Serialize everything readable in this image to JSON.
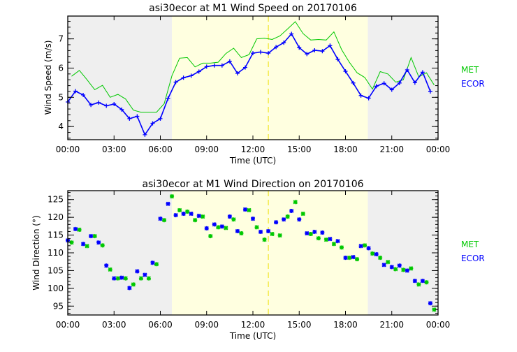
{
  "colors": {
    "met": "#00c800",
    "ecor": "#0000ff",
    "night": "#efefef",
    "day": "#ffffe0",
    "noon": "#f0e000"
  },
  "chart_data": [
    {
      "type": "line",
      "title": "asi30ecor at M1 Wind Speed on 20170106",
      "xlabel": "Time (UTC)",
      "ylabel": "Wind Speed (m/s)",
      "xlim": [
        0,
        24
      ],
      "ylim": [
        3.55,
        7.78
      ],
      "xticks": [
        0,
        3,
        6,
        9,
        12,
        15,
        18,
        21,
        24
      ],
      "xtick_labels": [
        "00:00",
        "03:00",
        "06:00",
        "09:00",
        "12:00",
        "15:00",
        "18:00",
        "21:00",
        "00:00"
      ],
      "yticks": [
        4,
        5,
        6,
        7
      ],
      "ytick_labels": [
        "4",
        "5",
        "6",
        "7"
      ],
      "shading": {
        "night_end": 6.75,
        "night_start": 19.45,
        "noon": 13.0
      },
      "legend": [
        "MET",
        "ECOR"
      ],
      "legend_placement": "right",
      "series": [
        {
          "name": "MET",
          "markers": false,
          "x": [
            0.25,
            0.75,
            1.25,
            1.75,
            2.25,
            2.75,
            3.25,
            3.75,
            4.25,
            4.75,
            5.25,
            5.75,
            6.25,
            6.75,
            7.25,
            7.75,
            8.25,
            8.75,
            9.25,
            9.75,
            10.25,
            10.75,
            11.25,
            11.75,
            12.25,
            12.75,
            13.25,
            13.75,
            14.25,
            14.75,
            15.25,
            15.75,
            16.25,
            16.75,
            17.25,
            17.75,
            18.25,
            18.75,
            19.25,
            19.75,
            20.25,
            20.75,
            21.25,
            21.75,
            22.25,
            22.75,
            23.25,
            23.75
          ],
          "y": [
            5.72,
            5.92,
            5.6,
            5.26,
            5.41,
            5.0,
            5.1,
            4.94,
            4.56,
            4.49,
            4.49,
            4.49,
            4.78,
            5.74,
            6.34,
            6.36,
            6.04,
            6.17,
            6.17,
            6.2,
            6.5,
            6.68,
            6.36,
            6.46,
            7.0,
            7.02,
            6.98,
            7.1,
            7.34,
            7.59,
            7.18,
            6.96,
            6.98,
            6.96,
            7.24,
            6.63,
            6.2,
            5.84,
            5.68,
            5.28,
            5.88,
            5.8,
            5.52,
            5.6,
            6.36,
            5.7,
            5.84,
            5.42
          ]
        },
        {
          "name": "ECOR",
          "markers": true,
          "x": [
            0,
            0.5,
            1,
            1.5,
            2,
            2.5,
            3,
            3.5,
            4,
            4.5,
            5,
            5.5,
            6,
            6.5,
            7,
            7.5,
            8,
            8.5,
            9,
            9.5,
            10,
            10.5,
            11,
            11.5,
            12,
            12.5,
            13,
            13.5,
            14,
            14.5,
            15,
            15.5,
            16,
            16.5,
            17,
            17.5,
            18,
            18.5,
            19,
            19.5,
            20,
            20.5,
            21,
            21.5,
            22,
            22.5,
            23,
            23.5
          ],
          "y": [
            4.84,
            5.21,
            5.08,
            4.74,
            4.82,
            4.71,
            4.77,
            4.58,
            4.27,
            4.35,
            3.72,
            4.11,
            4.27,
            4.96,
            5.52,
            5.67,
            5.74,
            5.88,
            6.05,
            6.09,
            6.09,
            6.23,
            5.82,
            6.02,
            6.51,
            6.55,
            6.51,
            6.72,
            6.87,
            7.17,
            6.7,
            6.48,
            6.61,
            6.58,
            6.77,
            6.3,
            5.89,
            5.49,
            5.06,
            4.97,
            5.38,
            5.48,
            5.26,
            5.49,
            5.94,
            5.5,
            5.86,
            5.2
          ]
        }
      ]
    },
    {
      "type": "scatter",
      "title": "asi30ecor at M1 Wind Direction on 20170106",
      "xlabel": "Time (UTC)",
      "ylabel": "Wind Direction (°)",
      "xlim": [
        0,
        24
      ],
      "ylim": [
        92.5,
        127.5
      ],
      "xticks": [
        0,
        3,
        6,
        9,
        12,
        15,
        18,
        21,
        24
      ],
      "xtick_labels": [
        "00:00",
        "03:00",
        "06:00",
        "09:00",
        "12:00",
        "15:00",
        "18:00",
        "21:00",
        "00:00"
      ],
      "yticks": [
        95,
        100,
        105,
        110,
        115,
        120,
        125
      ],
      "ytick_labels": [
        "95",
        "100",
        "105",
        "110",
        "115",
        "120",
        "125"
      ],
      "shading": {
        "night_end": 6.75,
        "night_start": 19.45,
        "noon": 13.0
      },
      "legend": [
        "MET",
        "ECOR"
      ],
      "legend_placement": "right",
      "series": [
        {
          "name": "MET",
          "x": [
            0.25,
            0.75,
            1.25,
            1.75,
            2.25,
            2.75,
            3.25,
            3.75,
            4.25,
            4.75,
            5.25,
            5.75,
            6.25,
            6.75,
            7.25,
            7.75,
            8.25,
            8.75,
            9.25,
            9.75,
            10.25,
            10.75,
            11.25,
            11.75,
            12.25,
            12.75,
            13.25,
            13.75,
            14.25,
            14.75,
            15.25,
            15.75,
            16.25,
            16.75,
            17.25,
            17.75,
            18.25,
            18.75,
            19.25,
            19.75,
            20.25,
            20.75,
            21.25,
            21.75,
            22.25,
            22.75,
            23.25,
            23.75
          ],
          "y": [
            112.9,
            116.5,
            111.9,
            114.7,
            112.1,
            105.3,
            102.8,
            102.8,
            101.1,
            102.8,
            102.8,
            106.8,
            119.2,
            125.9,
            122.0,
            121.6,
            119.2,
            120.2,
            114.7,
            117.2,
            117.0,
            119.4,
            115.5,
            122.0,
            117.2,
            113.7,
            115.3,
            114.9,
            120.2,
            124.3,
            121.0,
            115.3,
            114.1,
            113.7,
            112.5,
            111.5,
            108.6,
            108.2,
            112.1,
            109.8,
            108.6,
            107.4,
            105.4,
            105.2,
            105.6,
            101.1,
            101.7,
            94.0
          ]
        },
        {
          "name": "ECOR",
          "x": [
            0,
            0.5,
            1,
            1.5,
            2,
            2.5,
            3,
            3.5,
            4,
            4.5,
            5,
            5.5,
            6,
            6.5,
            7,
            7.5,
            8,
            8.5,
            9,
            9.5,
            10,
            10.5,
            11,
            11.5,
            12,
            12.5,
            13,
            13.5,
            14,
            14.5,
            15,
            15.5,
            16,
            16.5,
            17,
            17.5,
            18,
            18.5,
            19,
            19.5,
            20,
            20.5,
            21,
            21.5,
            22,
            22.5,
            23,
            23.5
          ],
          "y": [
            113.5,
            116.7,
            112.5,
            114.7,
            112.9,
            106.4,
            102.8,
            103.0,
            100.1,
            104.8,
            103.8,
            107.2,
            119.6,
            123.8,
            120.6,
            121.0,
            121.0,
            120.4,
            116.9,
            118.0,
            117.4,
            120.2,
            116.1,
            122.2,
            119.6,
            115.9,
            116.1,
            118.6,
            119.4,
            121.8,
            119.4,
            115.5,
            115.9,
            115.7,
            113.9,
            113.3,
            108.6,
            108.8,
            111.9,
            111.3,
            109.6,
            106.6,
            106.0,
            106.4,
            105.0,
            102.1,
            102.1,
            95.8
          ]
        }
      ]
    }
  ]
}
